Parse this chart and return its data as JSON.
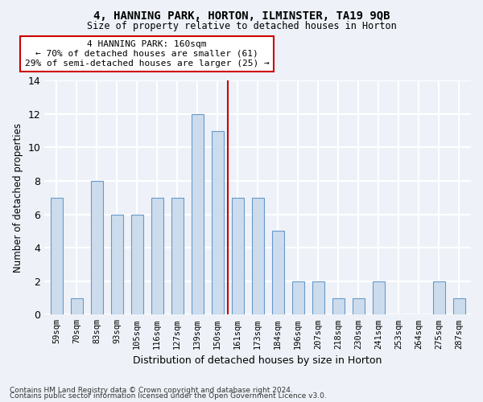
{
  "title1": "4, HANNING PARK, HORTON, ILMINSTER, TA19 9QB",
  "title2": "Size of property relative to detached houses in Horton",
  "xlabel": "Distribution of detached houses by size in Horton",
  "ylabel": "Number of detached properties",
  "categories": [
    "59sqm",
    "70sqm",
    "83sqm",
    "93sqm",
    "105sqm",
    "116sqm",
    "127sqm",
    "139sqm",
    "150sqm",
    "161sqm",
    "173sqm",
    "184sqm",
    "196sqm",
    "207sqm",
    "218sqm",
    "230sqm",
    "241sqm",
    "253sqm",
    "264sqm",
    "275sqm",
    "287sqm"
  ],
  "values": [
    7,
    1,
    8,
    6,
    6,
    7,
    7,
    12,
    11,
    7,
    7,
    5,
    2,
    2,
    1,
    1,
    2,
    0,
    0,
    2,
    1
  ],
  "bar_color": "#ccdcec",
  "bar_edge_color": "#6699cc",
  "annotation_text": "4 HANNING PARK: 160sqm\n← 70% of detached houses are smaller (61)\n29% of semi-detached houses are larger (25) →",
  "annotation_box_color": "#ffffff",
  "annotation_box_edge_color": "#cc0000",
  "reference_line_color": "#cc0000",
  "ylim": [
    0,
    14
  ],
  "yticks": [
    0,
    2,
    4,
    6,
    8,
    10,
    12,
    14
  ],
  "footer1": "Contains HM Land Registry data © Crown copyright and database right 2024.",
  "footer2": "Contains public sector information licensed under the Open Government Licence v3.0.",
  "bg_color": "#eef2f8",
  "grid_color": "#ffffff"
}
